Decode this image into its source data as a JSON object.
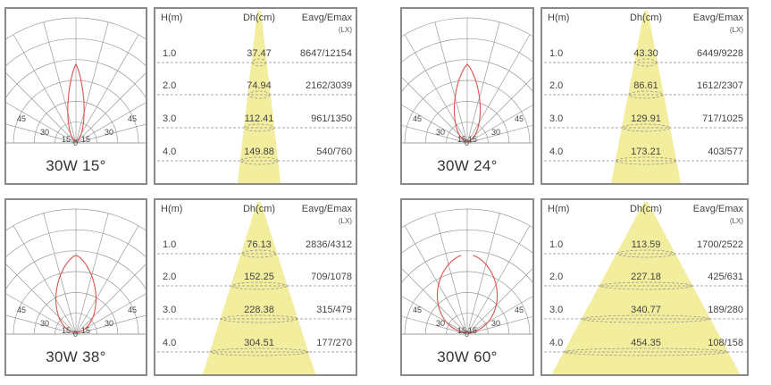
{
  "panels": [
    {
      "caption": "30W 15°",
      "beam_angle_deg": 15,
      "header": {
        "h": "H(m)",
        "dh": "Dh(cm)",
        "eavg": "Eavg/Emax",
        "unit": "(LX)"
      },
      "rows": [
        {
          "h": "1.0",
          "dh": "37.47",
          "e": "8647/12154"
        },
        {
          "h": "2.0",
          "dh": "74.94",
          "e": "2162/3039"
        },
        {
          "h": "3.0",
          "dh": "112.41",
          "e": "961/1350"
        },
        {
          "h": "4.0",
          "dh": "149.88",
          "e": "540/760"
        }
      ],
      "polar_labels": [
        "45",
        "30",
        "15",
        "0",
        "15",
        "30",
        "45"
      ]
    },
    {
      "caption": "30W 24°",
      "beam_angle_deg": 24,
      "header": {
        "h": "H(m)",
        "dh": "Dh(cm)",
        "eavg": "Eavg/Emax",
        "unit": "(LX)"
      },
      "rows": [
        {
          "h": "1.0",
          "dh": "43.30",
          "e": "6449/9228"
        },
        {
          "h": "2.0",
          "dh": "86.61",
          "e": "1612/2307"
        },
        {
          "h": "3.0",
          "dh": "129.91",
          "e": "717/1025"
        },
        {
          "h": "4.0",
          "dh": "173.21",
          "e": "403/577"
        }
      ],
      "polar_labels": [
        "45",
        "30",
        "15",
        "0",
        "15",
        "30",
        "45"
      ]
    },
    {
      "caption": "30W 38°",
      "beam_angle_deg": 38,
      "header": {
        "h": "H(m)",
        "dh": "Dh(cm)",
        "eavg": "Eavg/Emax",
        "unit": "(LX)"
      },
      "rows": [
        {
          "h": "1.0",
          "dh": "76.13",
          "e": "2836/4312"
        },
        {
          "h": "2.0",
          "dh": "152.25",
          "e": "709/1078"
        },
        {
          "h": "3.0",
          "dh": "228.38",
          "e": "315/479"
        },
        {
          "h": "4.0",
          "dh": "304.51",
          "e": "177/270"
        }
      ],
      "polar_labels": [
        "45",
        "30",
        "15",
        "0",
        "15",
        "30",
        "45"
      ]
    },
    {
      "caption": "30W 60°",
      "beam_angle_deg": 60,
      "header": {
        "h": "H(m)",
        "dh": "Dh(cm)",
        "eavg": "Eavg/Emax",
        "unit": "(LX)"
      },
      "rows": [
        {
          "h": "1.0",
          "dh": "113.59",
          "e": "1700/2522"
        },
        {
          "h": "2.0",
          "dh": "227.18",
          "e": "425/631"
        },
        {
          "h": "3.0",
          "dh": "340.77",
          "e": "189/280"
        },
        {
          "h": "4.0",
          "dh": "454.35",
          "e": "108/158"
        }
      ],
      "polar_labels": [
        "45",
        "30",
        "15",
        "0",
        "15",
        "30",
        "45"
      ]
    }
  ],
  "colors": {
    "border": "#8a8a8a",
    "grid": "#9a9a9a",
    "curve": "#d9534f",
    "beam": "#f3ed9e",
    "dash": "#8c8c8c"
  }
}
